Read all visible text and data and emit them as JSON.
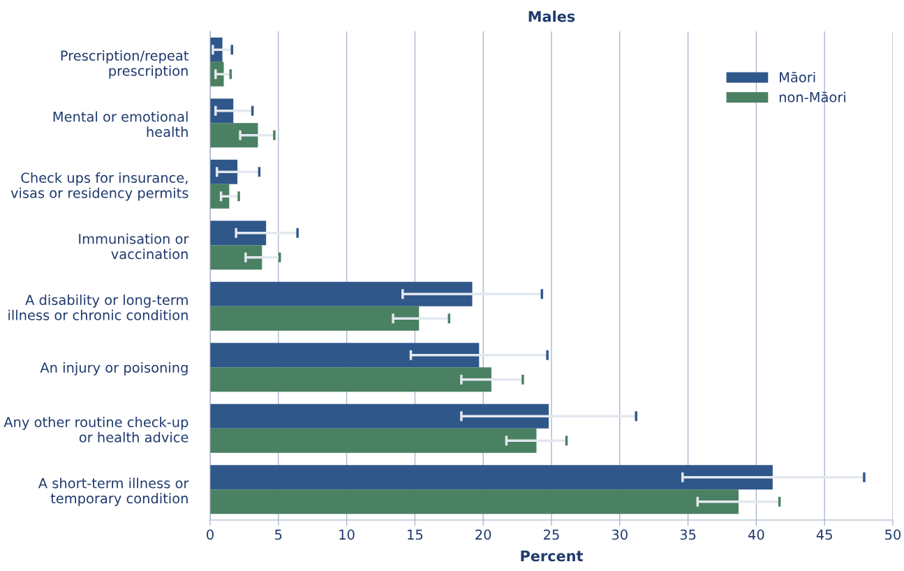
{
  "chart_data": {
    "type": "bar",
    "orientation": "horizontal",
    "title": "Males",
    "xlabel": "Percent",
    "categories": [
      "Prescription/repeat\nprescription",
      "Mental or emotional\nhealth",
      "Check ups for insurance,\nvisas or residency permits",
      "Immunisation or\nvaccination",
      "A disability or long-term\nillness or chronic condition",
      "An injury or poisoning",
      "Any other routine check-up\nor health advice",
      "A short-term illness or\ntemporary condition"
    ],
    "series": [
      {
        "name": "Māori",
        "color": "#30578a",
        "values": [
          0.9,
          1.7,
          2.0,
          4.1,
          19.2,
          19.7,
          24.8,
          41.2
        ],
        "errors": [
          [
            0.2,
            1.6
          ],
          [
            0.4,
            3.1
          ],
          [
            0.5,
            3.6
          ],
          [
            1.9,
            6.4
          ],
          [
            14.1,
            24.3
          ],
          [
            14.7,
            24.7
          ],
          [
            18.4,
            31.2
          ],
          [
            34.6,
            47.9
          ]
        ]
      },
      {
        "name": "non-Māori",
        "color": "#4a8163",
        "values": [
          1.0,
          3.5,
          1.4,
          3.8,
          15.3,
          20.6,
          23.9,
          38.7
        ],
        "errors": [
          [
            0.4,
            1.5
          ],
          [
            2.2,
            4.7
          ],
          [
            0.8,
            2.1
          ],
          [
            2.6,
            5.1
          ],
          [
            13.4,
            17.5
          ],
          [
            18.4,
            22.9
          ],
          [
            21.7,
            26.1
          ],
          [
            35.7,
            41.7
          ]
        ]
      }
    ],
    "xlim": [
      0,
      50
    ],
    "xticks": [
      0,
      5,
      10,
      15,
      20,
      25,
      30,
      35,
      40,
      45,
      50
    ],
    "grid": "x",
    "legend": "top right"
  }
}
